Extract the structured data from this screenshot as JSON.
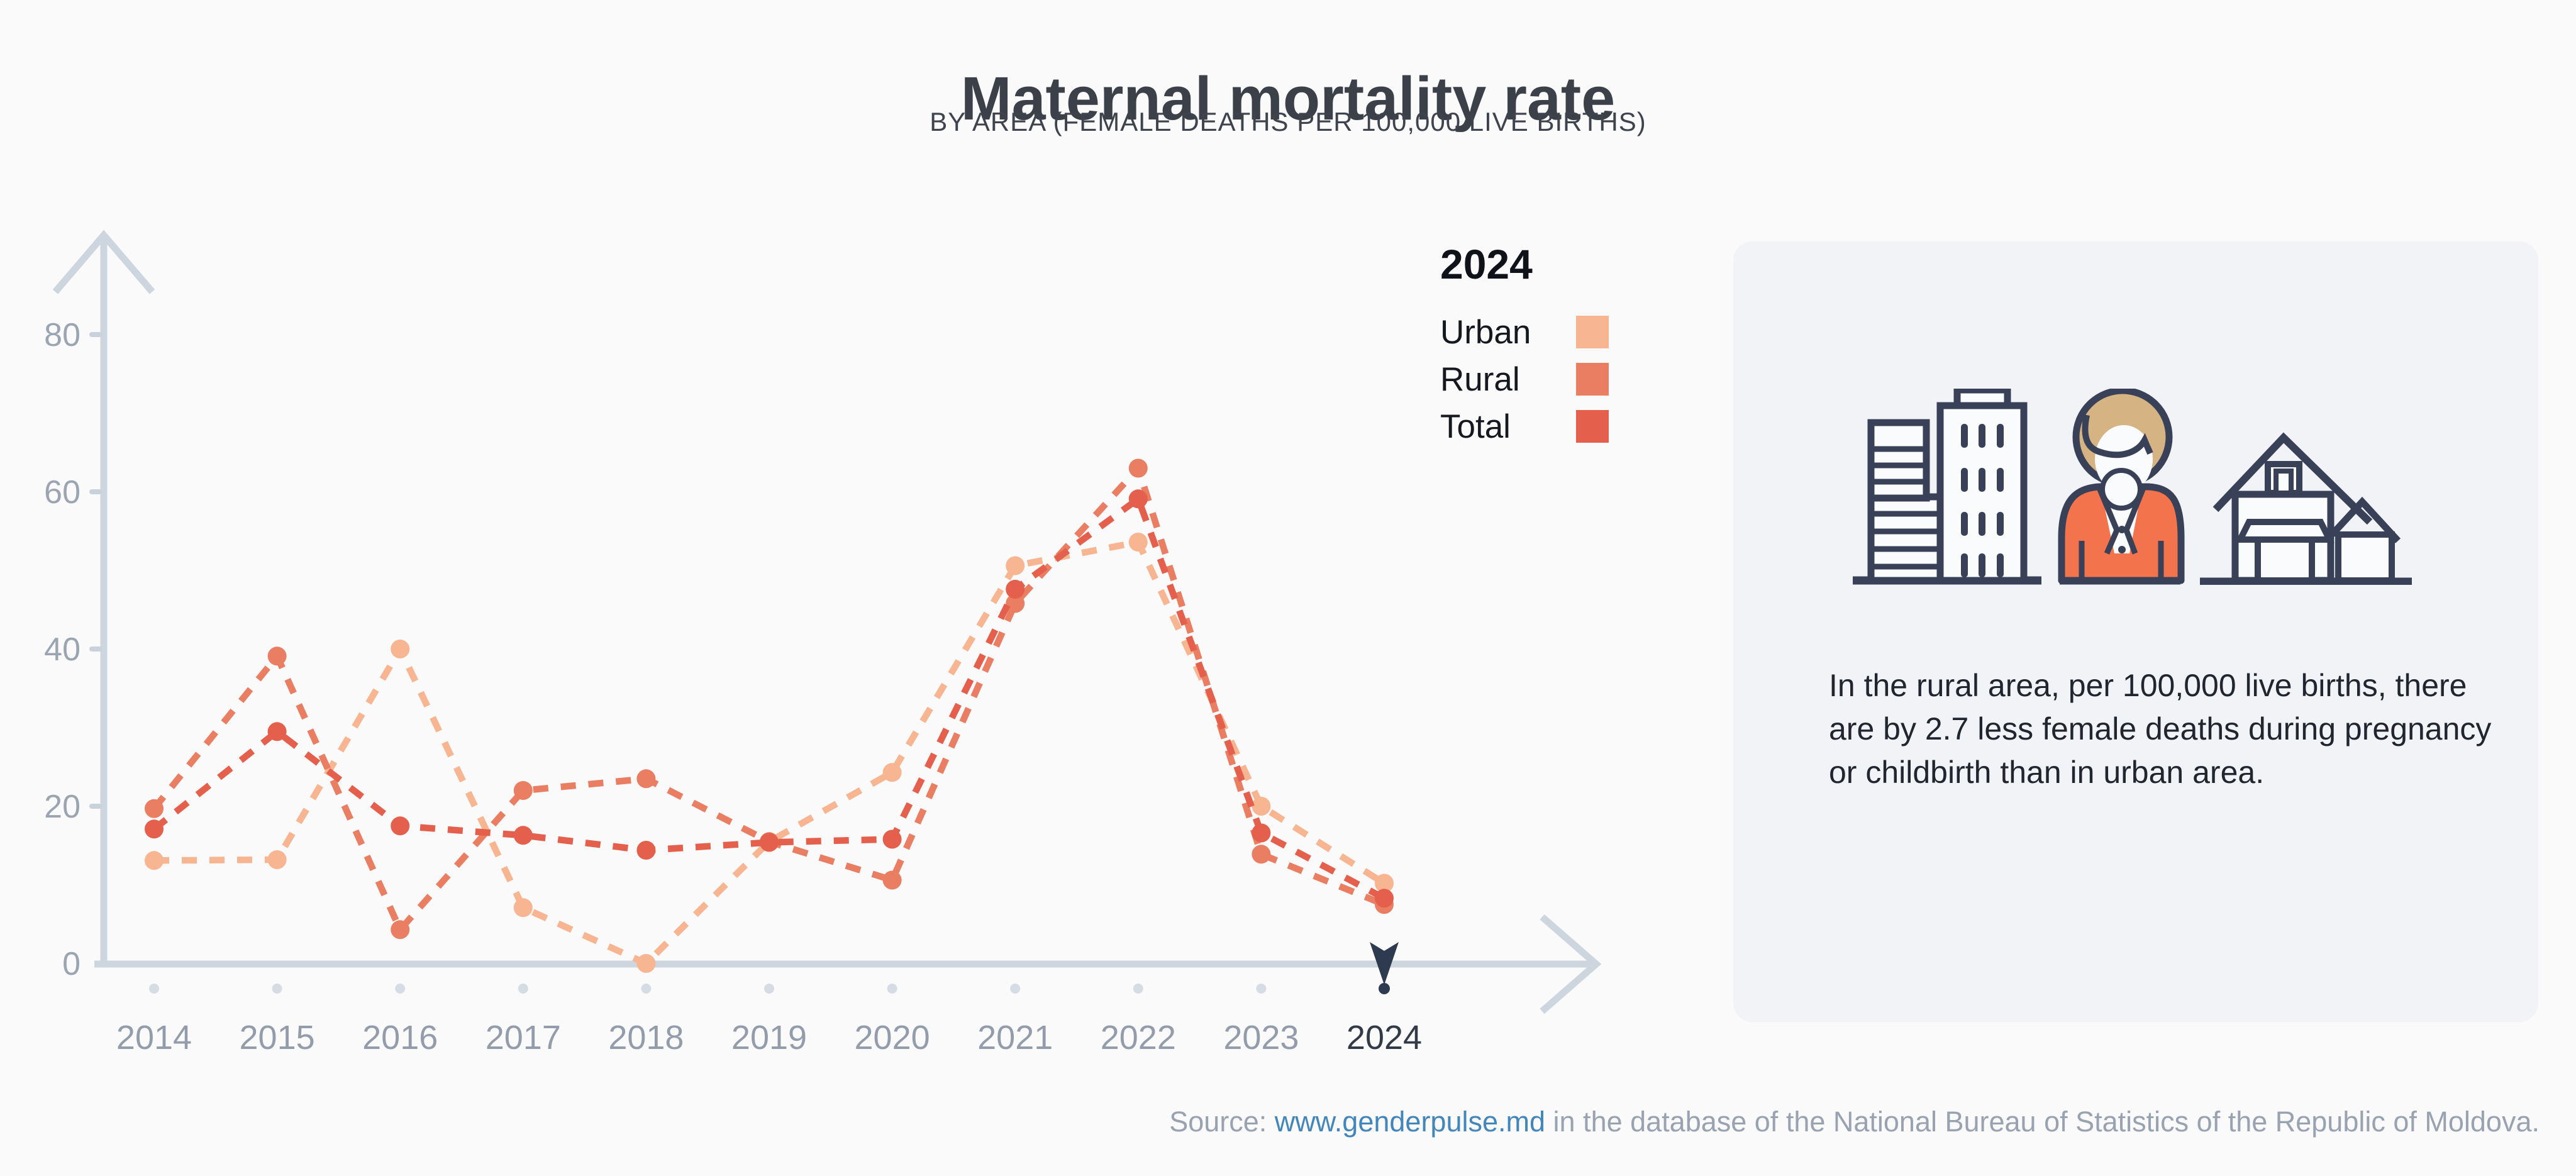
{
  "chart_data": {
    "type": "line",
    "title": "Maternal mortality rate",
    "subtitle": "BY AREA (FEMALE DEATHS PER 100,000 LIVE BIRTHS)",
    "categories": [
      "2014",
      "2015",
      "2016",
      "2017",
      "2018",
      "2019",
      "2020",
      "2021",
      "2022",
      "2023",
      "2024"
    ],
    "series": [
      {
        "name": "Urban",
        "color": "#F7B691",
        "values": [
          13.1,
          13.2,
          40.0,
          7.1,
          0,
          15.5,
          24.3,
          50.6,
          53.6,
          20.0,
          10.2
        ]
      },
      {
        "name": "Rural",
        "color": "#E97E62",
        "values": [
          19.7,
          39.1,
          4.3,
          22.0,
          23.5,
          15.5,
          10.6,
          45.8,
          63.0,
          13.9,
          7.5
        ]
      },
      {
        "name": "Total",
        "color": "#E4604C",
        "values": [
          17.1,
          29.5,
          17.5,
          16.3,
          14.4,
          15.4,
          15.8,
          47.6,
          59.1,
          16.6,
          8.3
        ]
      }
    ],
    "y_ticks": [
      0,
      20,
      40,
      60,
      80
    ],
    "ylim": [
      0,
      85
    ],
    "xlabel": "",
    "ylabel": "",
    "grid": false,
    "line_style": "dashed",
    "legend_position": "right",
    "highlighted_year": "2024"
  },
  "legend": {
    "title": "2024",
    "items": [
      {
        "label": "Urban",
        "color": "#F7B691"
      },
      {
        "label": "Rural",
        "color": "#E97E62"
      },
      {
        "label": "Total",
        "color": "#E4604C"
      }
    ]
  },
  "infocard": {
    "text": "In the rural area, per 100,000 live births, there are by 2.7 less female deaths during pregnancy or childbirth than in urban area."
  },
  "source": {
    "label": "Source: ",
    "link_text": "www.genderpulse.md",
    "rest": " in the database of the National Bureau of Statistics of the Republic of Moldova."
  },
  "colors": {
    "page_bg": "#FAFAFB",
    "card_bg": "#F1F3F6",
    "axis": "#CDD5DE",
    "tick_dash": "#C9D1DC",
    "tick_label": "#9BA5B2",
    "tick_dot": "#D6DCE4",
    "year_label": "#929CAB",
    "year_label_active": "#333A47",
    "marker": "#2E3A50",
    "link": "#4386BB",
    "source_text": "#98A2B1",
    "illustration_outline": "#394159",
    "illustration_hair": "#D6B383",
    "illustration_jacket": "#F3744C"
  }
}
